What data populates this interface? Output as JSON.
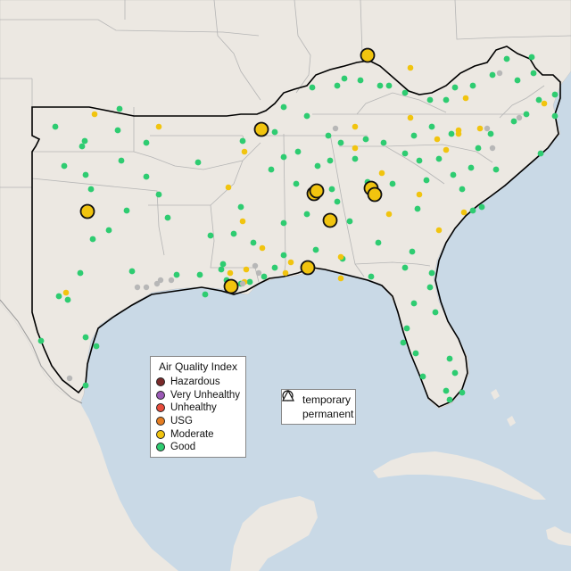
{
  "legend": {
    "title": "Air Quality Index",
    "categories": [
      {
        "label": "Hazardous",
        "color": "#7a2a2a"
      },
      {
        "label": "Very Unhealthy",
        "color": "#9b59b6"
      },
      {
        "label": "Unhealthy",
        "color": "#e74c3c"
      },
      {
        "label": "USG",
        "color": "#e67e22"
      },
      {
        "label": "Moderate",
        "color": "#f1c40f"
      },
      {
        "label": "Good",
        "color": "#2ecc71"
      }
    ]
  },
  "monitor_types": {
    "temporary": "temporary",
    "permanent": "permanent"
  },
  "colors": {
    "water": "#c9d9e6",
    "land": "#ece8e2",
    "region_outline": "#000000",
    "good": "#2ecc71",
    "moderate": "#f1c40f",
    "no_data": "#b7b7b7"
  }
}
